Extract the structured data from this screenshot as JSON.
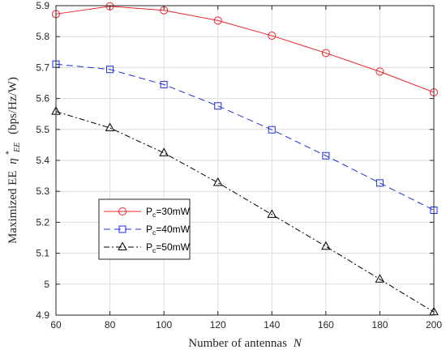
{
  "chart_data": {
    "type": "line",
    "title": "",
    "xlabel": "Number of antennas",
    "xlabel_var": "N",
    "ylabel": "Maximized EE",
    "ylabel_var": "η",
    "ylabel_sup": "*",
    "ylabel_sub": "EE",
    "ylabel_units": "(bps/Hz/W)",
    "xlim": [
      60,
      200
    ],
    "ylim": [
      4.9,
      5.9
    ],
    "x_ticks": [
      "60",
      "80",
      "100",
      "120",
      "140",
      "160",
      "180",
      "200"
    ],
    "y_ticks": [
      "4.9",
      "5",
      "5.1",
      "5.2",
      "5.3",
      "5.4",
      "5.5",
      "5.6",
      "5.7",
      "5.8",
      "5.9"
    ],
    "grid": true,
    "legend_position": "center-left",
    "x": [
      60,
      80,
      100,
      120,
      140,
      160,
      180,
      200
    ],
    "series": [
      {
        "legend_main": "P",
        "legend_sub": "c",
        "legend_rest": "=30mW",
        "color": "#e8252b",
        "marker": "circle",
        "line_style": "solid",
        "values": [
          5.873,
          5.898,
          5.885,
          5.852,
          5.803,
          5.747,
          5.687,
          5.62
        ]
      },
      {
        "legend_main": "P",
        "legend_sub": "c",
        "legend_rest": "=40mW",
        "color": "#1f2fd8",
        "marker": "square",
        "line_style": "dashed",
        "values": [
          5.711,
          5.694,
          5.645,
          5.576,
          5.499,
          5.415,
          5.327,
          5.239
        ]
      },
      {
        "legend_main": "P",
        "legend_sub": "c",
        "legend_rest": "=50mW",
        "color": "#000000",
        "marker": "triangle",
        "line_style": "dashdot",
        "values": [
          5.558,
          5.505,
          5.424,
          5.328,
          5.225,
          5.122,
          5.016,
          4.91
        ]
      }
    ]
  }
}
